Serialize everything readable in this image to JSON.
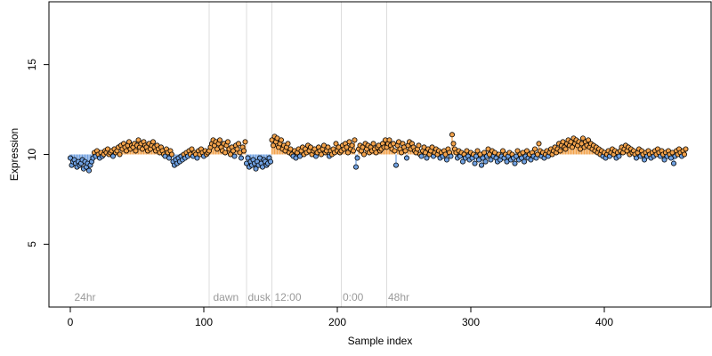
{
  "chart_data": {
    "type": "scatter",
    "title": "",
    "xlabel": "Sample index",
    "ylabel": "Expression",
    "xlim": [
      -16,
      480
    ],
    "ylim": [
      1.5,
      18.5
    ],
    "x_ticks": [
      0,
      100,
      200,
      300,
      400
    ],
    "y_ticks": [
      5,
      10,
      15
    ],
    "x_tick_labels": [
      "0",
      "100",
      "200",
      "300",
      "400"
    ],
    "y_tick_labels": [
      "5",
      "10",
      "15"
    ],
    "baseline": 10,
    "grid": false,
    "legend": "none",
    "colors": {
      "above_baseline": "#F2A24B",
      "below_baseline": "#6FA0E0",
      "point_stroke": "#000000",
      "divider": "#dddddd",
      "annotation": "#9a9a9a"
    },
    "vertical_lines": [
      104,
      132,
      151,
      203,
      237
    ],
    "annotations": [
      {
        "x": 3,
        "text": "24hr"
      },
      {
        "x": 107,
        "text": "dawn"
      },
      {
        "x": 133,
        "text": "dusk"
      },
      {
        "x": 153,
        "text": "12:00"
      },
      {
        "x": 204,
        "text": "0:00"
      },
      {
        "x": 238,
        "text": "48hr"
      }
    ],
    "segments": [
      {
        "start": 0,
        "end": 17,
        "values": [
          9.8,
          9.4,
          9.6,
          9.7,
          9.5,
          9.3,
          9.6,
          9.4,
          9.5,
          9.7,
          9.2,
          9.6,
          9.3,
          9.5,
          9.1,
          9.4,
          9.6,
          9.8
        ]
      },
      {
        "start": 18,
        "end": 103,
        "values": [
          10.1,
          9.9,
          10.2,
          10.0,
          9.8,
          10.1,
          9.9,
          10.0,
          10.2,
          10.1,
          10.3,
          10.0,
          10.1,
          10.2,
          9.9,
          10.3,
          10.1,
          10.2,
          10.4,
          10.0,
          10.5,
          10.3,
          10.6,
          10.4,
          10.2,
          10.5,
          10.7,
          10.3,
          10.5,
          10.4,
          10.6,
          10.2,
          10.5,
          10.8,
          10.4,
          10.6,
          10.3,
          10.7,
          10.5,
          10.4,
          10.2,
          10.6,
          10.3,
          10.5,
          10.7,
          10.4,
          10.2,
          10.5,
          10.3,
          10.1,
          10.4,
          10.2,
          10.0,
          9.9,
          10.3,
          10.1,
          9.8,
          10.2,
          10.0,
          9.6,
          9.4,
          9.7,
          9.5,
          9.8,
          9.6,
          9.9,
          9.7,
          10.0,
          9.8,
          10.1,
          9.9,
          10.2,
          10.0,
          10.3,
          9.9,
          10.1,
          10.0,
          9.8,
          10.2,
          10.0,
          10.3,
          10.1,
          9.9,
          10.2,
          10.0,
          10.1
        ]
      },
      {
        "start": 104,
        "end": 131,
        "values": [
          10.2,
          10.4,
          10.6,
          10.8,
          10.5,
          10.7,
          10.3,
          10.6,
          10.8,
          10.4,
          10.2,
          10.6,
          10.1,
          10.5,
          10.7,
          10.3,
          10.0,
          10.4,
          10.2,
          9.9,
          10.5,
          10.3,
          10.6,
          10.1,
          9.8,
          10.4,
          10.2,
          10.7
        ]
      },
      {
        "start": 132,
        "end": 150,
        "values": [
          9.5,
          9.8,
          9.3,
          9.6,
          9.4,
          9.7,
          9.5,
          9.2,
          9.6,
          9.4,
          9.8,
          9.5,
          9.3,
          9.7,
          9.6,
          9.4,
          9.5,
          9.8,
          9.6
        ]
      },
      {
        "start": 151,
        "end": 202,
        "values": [
          10.8,
          10.5,
          11.0,
          10.7,
          10.9,
          10.4,
          10.6,
          10.8,
          10.3,
          10.5,
          10.2,
          10.4,
          10.6,
          10.1,
          10.3,
          10.0,
          9.9,
          10.2,
          9.8,
          10.1,
          10.3,
          9.9,
          10.2,
          10.4,
          10.0,
          10.3,
          10.1,
          10.5,
          10.2,
          10.4,
          10.0,
          10.2,
          10.3,
          9.9,
          10.1,
          10.4,
          10.2,
          10.0,
          10.3,
          10.5,
          10.1,
          10.2,
          10.4,
          9.9,
          10.2,
          10.0,
          10.3,
          10.1,
          10.6,
          10.2,
          10.4,
          10.1
        ]
      },
      {
        "start": 203,
        "end": 236,
        "values": [
          10.2,
          10.5,
          10.3,
          10.6,
          10.4,
          10.1,
          10.7,
          10.3,
          10.5,
          10.2,
          10.8,
          9.3,
          9.8,
          10.3,
          10.5,
          10.2,
          10.4,
          10.0,
          10.6,
          10.3,
          10.5,
          10.1,
          10.4,
          10.2,
          10.6,
          10.3,
          10.1,
          10.4,
          10.5,
          10.2,
          10.3,
          10.6,
          10.4,
          10.8
        ]
      },
      {
        "start": 237,
        "end": 461,
        "values": [
          10.4,
          10.6,
          10.8,
          10.5,
          10.3,
          10.6,
          10.2,
          9.4,
          10.5,
          10.7,
          10.3,
          10.1,
          10.6,
          10.4,
          10.2,
          9.8,
          10.5,
          10.7,
          10.3,
          10.6,
          10.4,
          10.2,
          10.1,
          10.3,
          10.5,
          10.0,
          9.9,
          10.2,
          10.4,
          10.1,
          9.8,
          10.3,
          10.0,
          10.2,
          10.4,
          9.9,
          10.1,
          10.3,
          10.0,
          10.2,
          9.8,
          10.1,
          9.9,
          10.2,
          10.0,
          9.7,
          10.3,
          10.1,
          9.9,
          11.1,
          10.6,
          10.3,
          10.1,
          9.8,
          10.2,
          9.9,
          10.1,
          9.6,
          10.0,
          9.8,
          10.2,
          9.9,
          9.7,
          10.1,
          9.8,
          10.0,
          9.5,
          9.9,
          10.2,
          9.7,
          10.0,
          9.4,
          9.8,
          10.1,
          9.6,
          9.9,
          10.3,
          10.0,
          9.7,
          10.2,
          9.9,
          10.1,
          9.8,
          9.6,
          10.0,
          9.7,
          9.9,
          10.2,
          9.8,
          10.0,
          9.6,
          9.9,
          10.1,
          9.7,
          10.0,
          9.8,
          9.5,
          9.9,
          10.2,
          9.7,
          10.0,
          9.8,
          10.1,
          9.6,
          9.9,
          10.2,
          9.8,
          10.0,
          9.7,
          10.1,
          9.9,
          10.3,
          9.8,
          10.0,
          10.6,
          10.2,
          9.9,
          10.1,
          9.8,
          10.0,
          10.2,
          9.9,
          10.1,
          10.3,
          10.0,
          10.2,
          10.4,
          10.1,
          10.3,
          10.6,
          10.2,
          10.5,
          10.7,
          10.4,
          10.3,
          10.6,
          10.8,
          10.5,
          10.7,
          10.4,
          10.9,
          10.6,
          10.8,
          10.5,
          10.7,
          10.3,
          10.6,
          10.9,
          10.4,
          10.7,
          10.5,
          10.8,
          10.4,
          10.6,
          10.3,
          10.5,
          10.2,
          10.4,
          10.1,
          10.3,
          10.0,
          10.2,
          9.9,
          10.1,
          9.8,
          10.0,
          10.2,
          9.9,
          10.1,
          10.3,
          10.0,
          10.2,
          9.8,
          10.1,
          9.9,
          10.2,
          10.4,
          10.1,
          10.3,
          10.5,
          10.2,
          10.4,
          10.0,
          10.3,
          10.1,
          10.2,
          10.0,
          9.8,
          10.1,
          10.3,
          9.9,
          10.2,
          10.0,
          9.7,
          10.1,
          9.9,
          10.2,
          10.0,
          9.8,
          10.1,
          9.9,
          10.2,
          10.0,
          10.3,
          10.1,
          9.9,
          10.2,
          10.0,
          9.7,
          10.1,
          9.9,
          10.2,
          10.0,
          9.8,
          10.1,
          9.5,
          9.9,
          10.2,
          10.0,
          10.3,
          10.1,
          9.9,
          10.2,
          10.0,
          10.3
        ]
      }
    ]
  }
}
